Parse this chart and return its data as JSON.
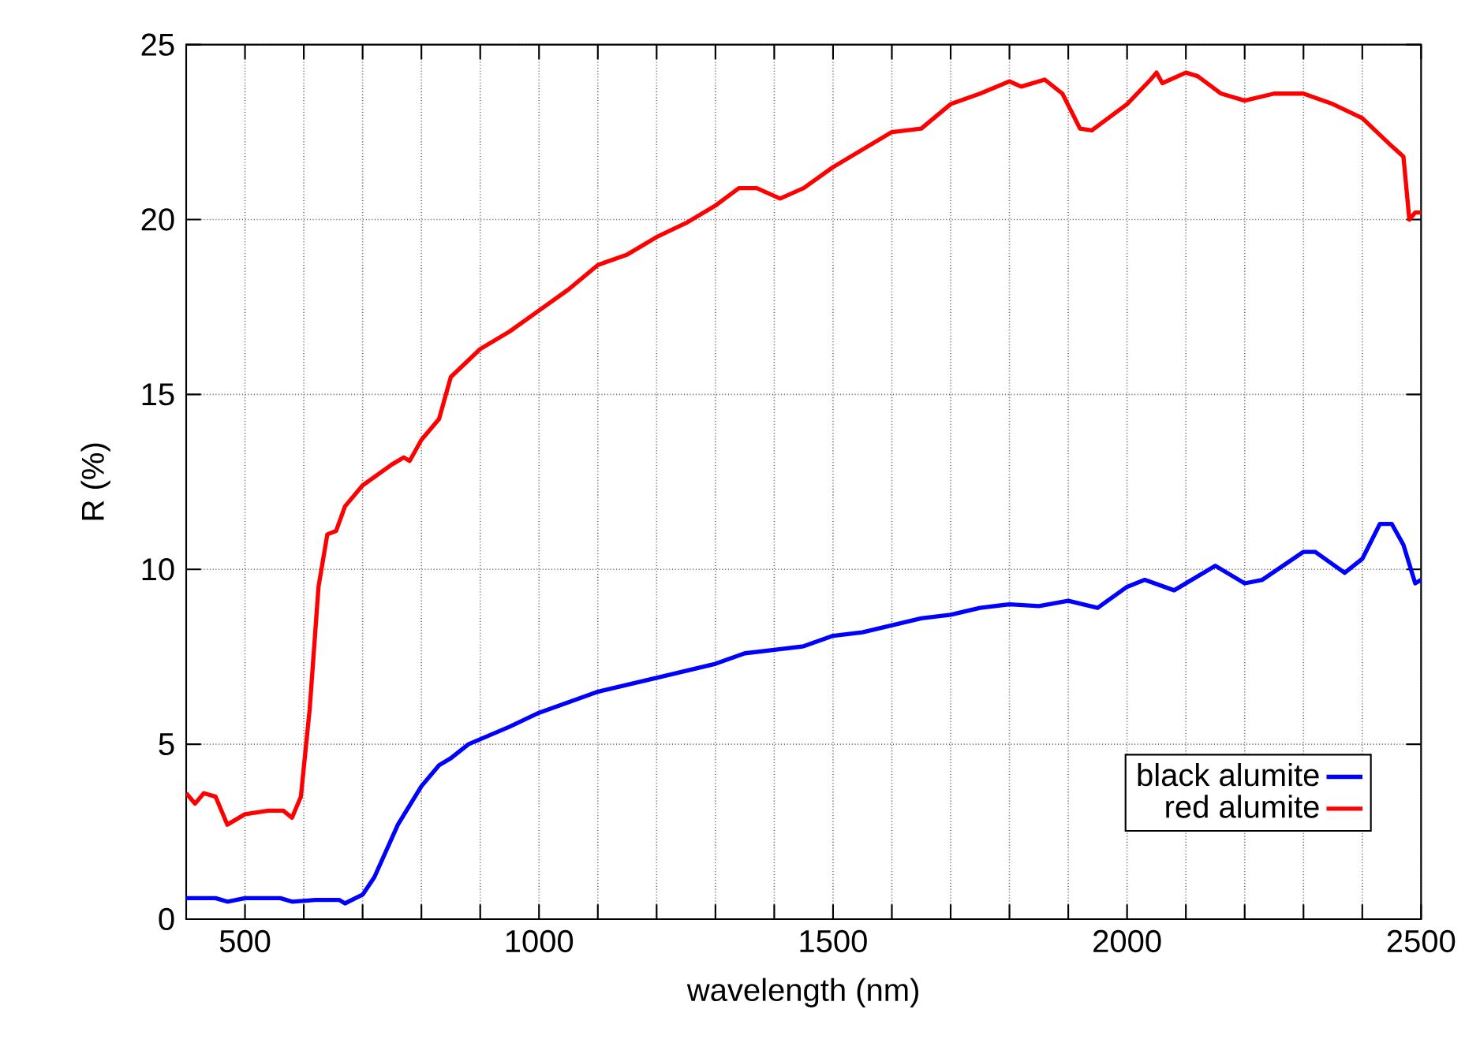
{
  "chart_data": {
    "type": "line",
    "xlabel": "wavelength (nm)",
    "ylabel": "R (%)",
    "xlim": [
      400,
      2500
    ],
    "ylim": [
      0,
      25
    ],
    "xticks": [
      500,
      {
        "value": 600,
        "label": null
      },
      {
        "value": 700,
        "label": null
      },
      {
        "value": 800,
        "label": null
      },
      {
        "value": 900,
        "label": null
      },
      1000,
      {
        "value": 1100,
        "label": null
      },
      {
        "value": 1200,
        "label": null
      },
      {
        "value": 1300,
        "label": null
      },
      {
        "value": 1400,
        "label": null
      },
      1500,
      {
        "value": 1600,
        "label": null
      },
      {
        "value": 1700,
        "label": null
      },
      {
        "value": 1800,
        "label": null
      },
      {
        "value": 1900,
        "label": null
      },
      2000,
      {
        "value": 2100,
        "label": null
      },
      {
        "value": 2200,
        "label": null
      },
      {
        "value": 2300,
        "label": null
      },
      {
        "value": 2400,
        "label": null
      },
      2500
    ],
    "yticks": [
      0,
      5,
      10,
      15,
      20,
      25
    ],
    "grid": true,
    "legend": "bottom right",
    "marker": "none",
    "line_style": "solid",
    "series": [
      {
        "name": "black alumite",
        "color": "#0000ff",
        "x": [
          400,
          450,
          470,
          500,
          560,
          580,
          620,
          660,
          670,
          700,
          720,
          760,
          800,
          830,
          850,
          880,
          950,
          1000,
          1100,
          1200,
          1300,
          1350,
          1400,
          1450,
          1500,
          1550,
          1600,
          1650,
          1700,
          1750,
          1800,
          1850,
          1900,
          1950,
          2000,
          2030,
          2080,
          2150,
          2200,
          2230,
          2300,
          2320,
          2370,
          2400,
          2430,
          2450,
          2470,
          2490,
          2500
        ],
        "values": [
          0.6,
          0.6,
          0.5,
          0.6,
          0.6,
          0.5,
          0.55,
          0.55,
          0.45,
          0.7,
          1.2,
          2.7,
          3.8,
          4.4,
          4.6,
          5.0,
          5.5,
          5.9,
          6.5,
          6.9,
          7.3,
          7.6,
          7.7,
          7.8,
          8.1,
          8.2,
          8.4,
          8.6,
          8.7,
          8.9,
          9.0,
          8.95,
          9.1,
          8.9,
          9.5,
          9.7,
          9.4,
          10.1,
          9.6,
          9.7,
          10.5,
          10.5,
          9.9,
          10.3,
          11.3,
          11.3,
          10.7,
          9.6,
          9.7
        ]
      },
      {
        "name": "red alumite",
        "color": "#ff0000",
        "x": [
          400,
          415,
          430,
          450,
          470,
          500,
          540,
          565,
          580,
          595,
          610,
          625,
          640,
          655,
          670,
          700,
          750,
          770,
          780,
          800,
          830,
          850,
          900,
          950,
          1000,
          1050,
          1100,
          1150,
          1200,
          1250,
          1300,
          1340,
          1370,
          1410,
          1450,
          1500,
          1550,
          1600,
          1650,
          1700,
          1750,
          1800,
          1820,
          1860,
          1890,
          1920,
          1940,
          2000,
          2040,
          2050,
          2060,
          2100,
          2120,
          2160,
          2200,
          2250,
          2300,
          2350,
          2400,
          2450,
          2470,
          2480,
          2490,
          2500
        ],
        "values": [
          3.6,
          3.3,
          3.6,
          3.5,
          2.7,
          3.0,
          3.1,
          3.1,
          2.9,
          3.5,
          6.0,
          9.5,
          11.0,
          11.1,
          11.8,
          12.4,
          13.0,
          13.2,
          13.1,
          13.7,
          14.3,
          15.5,
          16.3,
          16.8,
          17.4,
          18.0,
          18.7,
          19.0,
          19.5,
          19.9,
          20.4,
          20.9,
          20.9,
          20.6,
          20.9,
          21.5,
          22.0,
          22.5,
          22.6,
          23.3,
          23.6,
          23.95,
          23.8,
          24.0,
          23.6,
          22.6,
          22.55,
          23.3,
          24.0,
          24.2,
          23.9,
          24.2,
          24.1,
          23.6,
          23.4,
          23.6,
          23.6,
          23.3,
          22.9,
          22.1,
          21.8,
          20.0,
          20.2,
          20.2
        ]
      }
    ]
  }
}
